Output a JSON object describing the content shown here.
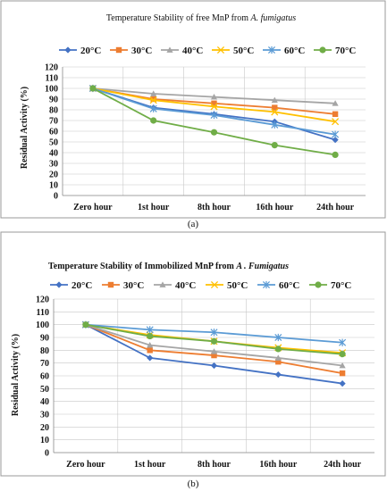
{
  "chart_data": [
    {
      "type": "line",
      "panel": "a",
      "caption": "(a)",
      "title_prefix": "Temperature Stability of free MnP from ",
      "title_italic": "A. fumigatus",
      "ylabel": "Residual Activity (%)",
      "xlabel": "",
      "categories": [
        "Zero hour",
        "1st hour",
        "8th hour",
        "16th hour",
        "24th hour"
      ],
      "ylim": [
        0,
        120
      ],
      "yticks": [
        0,
        10,
        20,
        30,
        40,
        50,
        60,
        70,
        80,
        90,
        100,
        110,
        120
      ],
      "grid": true,
      "legend_position": "top",
      "series": [
        {
          "name": "20°C",
          "color": "#4472c4",
          "marker": "diamond",
          "values": [
            100,
            82,
            76,
            69,
            52
          ]
        },
        {
          "name": "30°C",
          "color": "#ed7d31",
          "marker": "square",
          "values": [
            100,
            90,
            86,
            82,
            76
          ]
        },
        {
          "name": "40°C",
          "color": "#a5a5a5",
          "marker": "triangle",
          "values": [
            100,
            95,
            92,
            89,
            86
          ]
        },
        {
          "name": "50°C",
          "color": "#ffc000",
          "marker": "x",
          "values": [
            100,
            89,
            83,
            78,
            69
          ]
        },
        {
          "name": "60°C",
          "color": "#5b9bd5",
          "marker": "star",
          "values": [
            100,
            81,
            75,
            66,
            57
          ]
        },
        {
          "name": "70°C",
          "color": "#70ad47",
          "marker": "circle",
          "values": [
            100,
            70,
            59,
            47,
            38
          ]
        }
      ]
    },
    {
      "type": "line",
      "panel": "b",
      "caption": "(b)",
      "title_prefix": "Temperature Stability of Immobilized MnP from ",
      "title_italic": "A . Fumigatus",
      "ylabel": "Residual Activity (%)",
      "xlabel": "",
      "categories": [
        "Zero hour",
        "1st hour",
        "8th hour",
        "16th hour",
        "24th hour"
      ],
      "ylim": [
        0,
        120
      ],
      "yticks": [
        0,
        10,
        20,
        30,
        40,
        50,
        60,
        70,
        80,
        90,
        100,
        110,
        120
      ],
      "grid": true,
      "legend_position": "top",
      "series": [
        {
          "name": "20°C",
          "color": "#4472c4",
          "marker": "diamond",
          "values": [
            100,
            74,
            68,
            61,
            54
          ]
        },
        {
          "name": "30°C",
          "color": "#ed7d31",
          "marker": "square",
          "values": [
            100,
            80,
            76,
            71,
            62
          ]
        },
        {
          "name": "40°C",
          "color": "#a5a5a5",
          "marker": "triangle",
          "values": [
            100,
            84,
            79,
            74,
            68
          ]
        },
        {
          "name": "50°C",
          "color": "#ffc000",
          "marker": "x",
          "values": [
            100,
            92,
            87,
            82,
            78
          ]
        },
        {
          "name": "60°C",
          "color": "#5b9bd5",
          "marker": "star",
          "values": [
            100,
            96,
            94,
            90,
            86
          ]
        },
        {
          "name": "70°C",
          "color": "#70ad47",
          "marker": "circle",
          "values": [
            100,
            91,
            87,
            81,
            77
          ]
        }
      ]
    }
  ]
}
